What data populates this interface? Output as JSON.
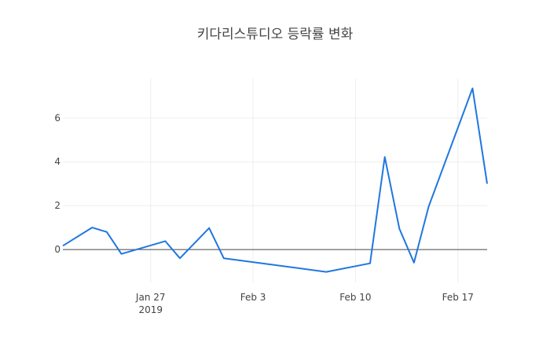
{
  "chart_data": {
    "type": "line",
    "title": "키다리스튜디오 등락률 변화",
    "x_axis": {
      "type": "date",
      "ticks": [
        {
          "date": "2019-01-27",
          "label": "Jan 27",
          "sublabel": "2019"
        },
        {
          "date": "2019-02-03",
          "label": "Feb 3"
        },
        {
          "date": "2019-02-10",
          "label": "Feb 10"
        },
        {
          "date": "2019-02-17",
          "label": "Feb 17"
        }
      ],
      "range": [
        "2019-01-21",
        "2019-02-19"
      ]
    },
    "y_axis": {
      "ticks": [
        0,
        2,
        4,
        6
      ],
      "range": [
        -1.5,
        7.8
      ]
    },
    "grid": true,
    "series": [
      {
        "color": "#1f77e0",
        "x": [
          "2019-01-21",
          "2019-01-23",
          "2019-01-24",
          "2019-01-25",
          "2019-01-28",
          "2019-01-29",
          "2019-01-31",
          "2019-02-01",
          "2019-02-08",
          "2019-02-11",
          "2019-02-12",
          "2019-02-13",
          "2019-02-14",
          "2019-02-15",
          "2019-02-18",
          "2019-02-19"
        ],
        "values": [
          0.17,
          1.0,
          0.8,
          -0.2,
          0.38,
          -0.4,
          0.98,
          -0.4,
          -1.02,
          -0.63,
          4.22,
          0.95,
          -0.6,
          1.95,
          7.35,
          3.0
        ]
      }
    ]
  }
}
